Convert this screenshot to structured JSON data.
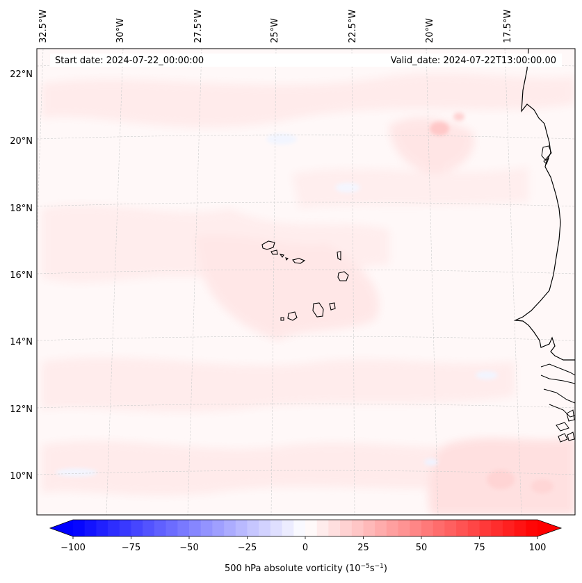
{
  "map": {
    "start_date": "Start date: 2024-07-22_00:00:00",
    "valid_date": "Valid_date: 2024-07-22T13:00:00.00",
    "lon_labels": [
      "32.5°W",
      "30°W",
      "27.5°W",
      "25°W",
      "22.5°W",
      "20°W",
      "17.5°W"
    ],
    "lat_labels": [
      "22°N",
      "20°N",
      "18°N",
      "16°N",
      "14°N",
      "12°N",
      "10°N"
    ],
    "field": "500 hPa absolute vorticity",
    "colormap": "bwr"
  },
  "colorbar": {
    "ticks": [
      "−100",
      "−75",
      "−50",
      "−25",
      "0",
      "25",
      "50",
      "75",
      "100"
    ],
    "label_main": "500 hPa absolute vorticity (10",
    "label_exp1": "−5",
    "label_mid": "s",
    "label_exp2": "−1",
    "label_end": ")",
    "min_value": -100,
    "max_value": 100,
    "levels": 40,
    "extend": "both"
  },
  "colors": {
    "negative": "#0000ff",
    "positive": "#ff0000",
    "coastline": "#000000",
    "grid": "#cccccc"
  }
}
